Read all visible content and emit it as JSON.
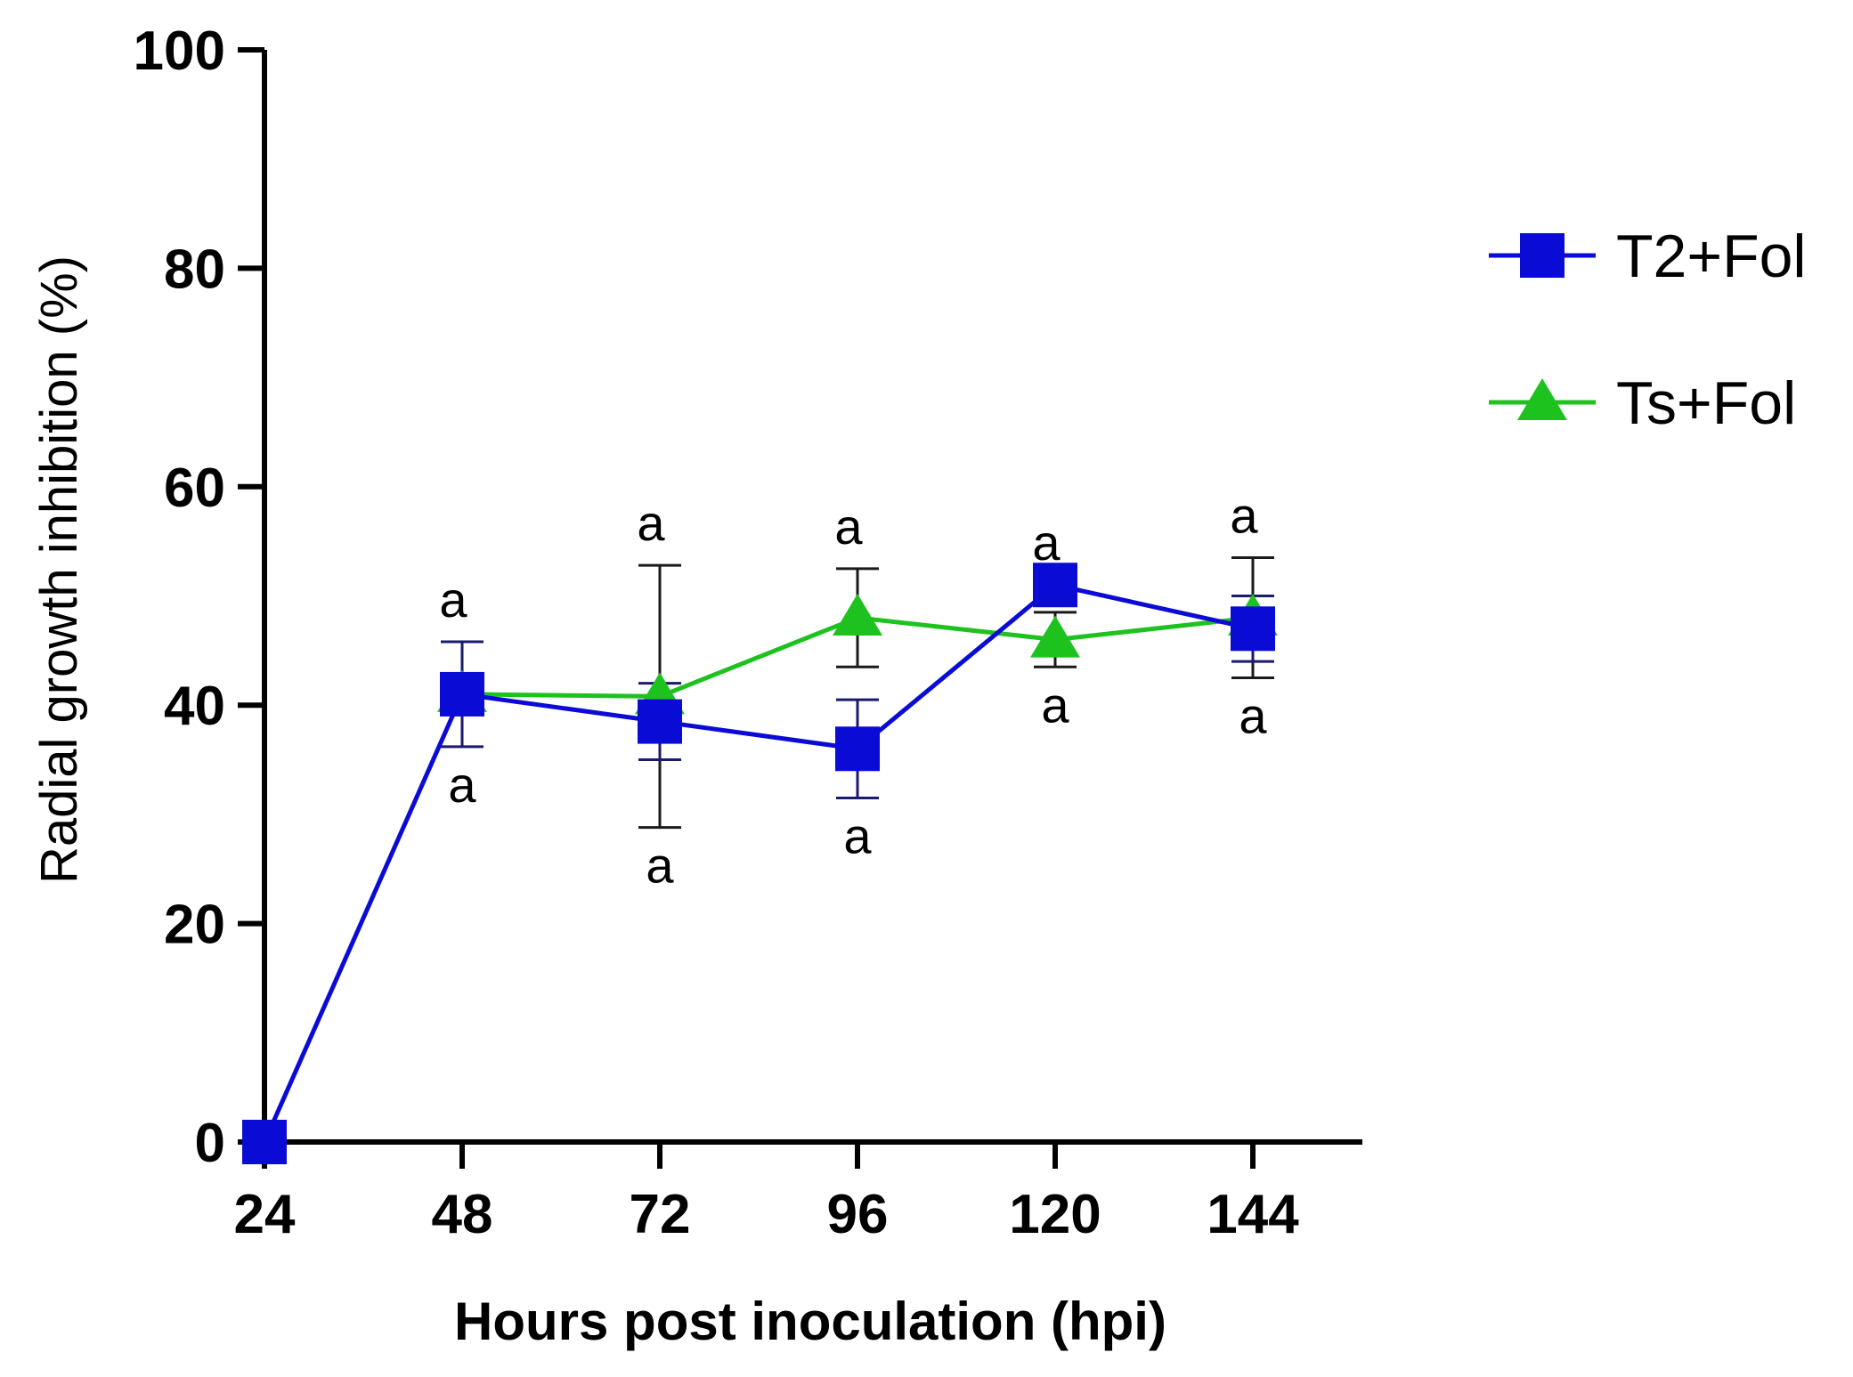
{
  "chart_data": {
    "type": "line",
    "title": "",
    "xlabel": "Hours post inoculation (hpi)",
    "ylabel": "Radial growth inhibition (%)",
    "categories": [
      "24",
      "48",
      "72",
      "96",
      "120",
      "144"
    ],
    "ylim": [
      0,
      100
    ],
    "yticks": [
      "0",
      "20",
      "40",
      "60",
      "80",
      "100"
    ],
    "grid": false,
    "legend_position": "right",
    "series": [
      {
        "name": "T2+Fol",
        "color": "#0b0bd6",
        "marker": "square",
        "values": [
          0,
          41,
          38.5,
          36,
          51,
          47
        ],
        "errors": [
          0,
          4.8,
          3.5,
          4.5,
          0,
          3
        ],
        "annotations": [
          "",
          "a",
          "a",
          "a",
          "a",
          "a"
        ]
      },
      {
        "name": "Ts+Fol",
        "color": "#1ec21e",
        "marker": "triangle",
        "values": [
          null,
          41,
          40.8,
          48,
          46,
          48
        ],
        "errors": [
          0,
          0,
          12,
          4.5,
          2.5,
          5.5
        ],
        "annotations": [
          "",
          "a",
          "a",
          "a",
          "a",
          "a"
        ]
      }
    ]
  }
}
